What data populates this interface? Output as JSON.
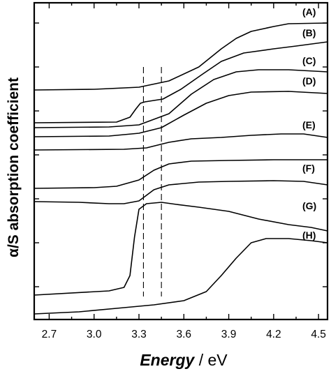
{
  "chart_data": {
    "type": "line",
    "xlabel_main": "Energy",
    "xlabel_unit": " / eV",
    "ylabel": "α/S absorption coefficient",
    "xlim": [
      2.6,
      4.56
    ],
    "x_ticks": [
      "2.7",
      "3.0",
      "3.3",
      "3.6",
      "3.9",
      "4.2",
      "4.5"
    ],
    "grid": false,
    "reference_lines_x": [
      3.33,
      3.45
    ],
    "reference_line_style": "dashed",
    "series": [
      {
        "name": "(A)",
        "points": [
          [
            2.6,
            129
          ],
          [
            3.0,
            128
          ],
          [
            3.3,
            125
          ],
          [
            3.5,
            116
          ],
          [
            3.7,
            96
          ],
          [
            3.85,
            70
          ],
          [
            3.95,
            55
          ],
          [
            4.05,
            45
          ],
          [
            4.2,
            38
          ],
          [
            4.3,
            34
          ],
          [
            4.56,
            33
          ]
        ]
      },
      {
        "name": "(B)",
        "points": [
          [
            2.6,
            176
          ],
          [
            3.15,
            175
          ],
          [
            3.24,
            168
          ],
          [
            3.28,
            156
          ],
          [
            3.31,
            148
          ],
          [
            3.34,
            146
          ],
          [
            3.4,
            144
          ],
          [
            3.46,
            142
          ],
          [
            3.58,
            128
          ],
          [
            3.72,
            107
          ],
          [
            3.85,
            88
          ],
          [
            4.0,
            76
          ],
          [
            4.2,
            70
          ],
          [
            4.35,
            66
          ],
          [
            4.56,
            60
          ]
        ]
      },
      {
        "name": "(C)",
        "points": [
          [
            2.6,
            183
          ],
          [
            3.1,
            182
          ],
          [
            3.3,
            179
          ],
          [
            3.5,
            163
          ],
          [
            3.65,
            135
          ],
          [
            3.8,
            114
          ],
          [
            3.95,
            103
          ],
          [
            4.1,
            100
          ],
          [
            4.3,
            100
          ],
          [
            4.56,
            103
          ]
        ]
      },
      {
        "name": "(D)",
        "points": [
          [
            2.6,
            196
          ],
          [
            3.1,
            195
          ],
          [
            3.3,
            191
          ],
          [
            3.45,
            183
          ],
          [
            3.6,
            165
          ],
          [
            3.75,
            148
          ],
          [
            3.9,
            137
          ],
          [
            4.05,
            132
          ],
          [
            4.3,
            131
          ],
          [
            4.56,
            134
          ]
        ]
      },
      {
        "name": "(E)",
        "points": [
          [
            2.6,
            215
          ],
          [
            3.2,
            214
          ],
          [
            3.35,
            212
          ],
          [
            3.5,
            204
          ],
          [
            3.65,
            199
          ],
          [
            3.85,
            197
          ],
          [
            4.05,
            194
          ],
          [
            4.25,
            192
          ],
          [
            4.4,
            192
          ],
          [
            4.56,
            197
          ]
        ]
      },
      {
        "name": "(F)",
        "points": [
          [
            2.6,
            270
          ],
          [
            3.0,
            269
          ],
          [
            3.15,
            267
          ],
          [
            3.3,
            258
          ],
          [
            3.4,
            244
          ],
          [
            3.5,
            235
          ],
          [
            3.65,
            231
          ],
          [
            3.9,
            230
          ],
          [
            4.2,
            229
          ],
          [
            4.56,
            229
          ]
        ]
      },
      {
        "name": "(G)",
        "points": [
          [
            2.6,
            289
          ],
          [
            2.9,
            290
          ],
          [
            3.1,
            292
          ],
          [
            3.2,
            292
          ],
          [
            3.3,
            288
          ],
          [
            3.4,
            272
          ],
          [
            3.5,
            265
          ],
          [
            3.7,
            261
          ],
          [
            3.9,
            260
          ],
          [
            4.2,
            259
          ],
          [
            4.4,
            260
          ],
          [
            4.56,
            265
          ]
        ]
      },
      {
        "name": "(H)",
        "points": [
          [
            2.6,
            423
          ],
          [
            3.1,
            417
          ],
          [
            3.2,
            412
          ],
          [
            3.24,
            395
          ],
          [
            3.27,
            340
          ],
          [
            3.3,
            300
          ],
          [
            3.35,
            292
          ],
          [
            3.45,
            290
          ],
          [
            3.55,
            293
          ],
          [
            3.7,
            297
          ],
          [
            3.9,
            303
          ],
          [
            4.1,
            314
          ],
          [
            4.3,
            322
          ],
          [
            4.45,
            326
          ],
          [
            4.56,
            331
          ]
        ]
      },
      {
        "name": "",
        "points": [
          [
            2.6,
            450
          ],
          [
            2.9,
            447
          ],
          [
            3.2,
            441
          ],
          [
            3.4,
            437
          ],
          [
            3.6,
            431
          ],
          [
            3.75,
            418
          ],
          [
            3.85,
            395
          ],
          [
            3.95,
            370
          ],
          [
            4.05,
            348
          ],
          [
            4.15,
            342
          ],
          [
            4.3,
            342
          ],
          [
            4.45,
            345
          ],
          [
            4.56,
            348
          ]
        ]
      }
    ]
  }
}
